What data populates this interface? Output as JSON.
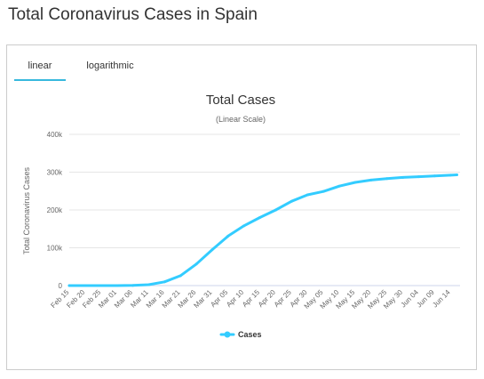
{
  "page": {
    "title": "Total Coronavirus Cases in Spain"
  },
  "tabs": [
    {
      "label": "linear",
      "active": true
    },
    {
      "label": "logarithmic",
      "active": false
    }
  ],
  "colors": {
    "series": "#33ccff",
    "tab_underline": "#37b8dd",
    "grid": "#e6e6e6"
  },
  "chart_data": {
    "type": "line",
    "title": "Total Cases",
    "subtitle": "(Linear Scale)",
    "ylabel": "Total Coronavirus Cases",
    "xlabel": "",
    "ylim": [
      0,
      400000
    ],
    "y_ticks": [
      {
        "value": 0,
        "label": "0"
      },
      {
        "value": 100000,
        "label": "100k"
      },
      {
        "value": 200000,
        "label": "200k"
      },
      {
        "value": 300000,
        "label": "300k"
      },
      {
        "value": 400000,
        "label": "400k"
      }
    ],
    "x_tick_labels": [
      "Feb 15",
      "Feb 20",
      "Feb 25",
      "Mar 01",
      "Mar 06",
      "Mar 11",
      "Mar 16",
      "Mar 21",
      "Mar 26",
      "Mar 31",
      "Apr 05",
      "Apr 10",
      "Apr 15",
      "Apr 20",
      "Apr 25",
      "Apr 30",
      "May 05",
      "May 10",
      "May 15",
      "May 20",
      "May 25",
      "May 30",
      "Jun 04",
      "Jun 09",
      "Jun 14"
    ],
    "grid": true,
    "legend": {
      "position": "bottom-center"
    },
    "series": [
      {
        "name": "Cases",
        "color": "#33ccff",
        "points": [
          [
            "Feb 15",
            2
          ],
          [
            "Feb 20",
            2
          ],
          [
            "Feb 25",
            6
          ],
          [
            "Mar 01",
            84
          ],
          [
            "Mar 06",
            400
          ],
          [
            "Mar 11",
            2300
          ],
          [
            "Mar 16",
            10000
          ],
          [
            "Mar 21",
            26000
          ],
          [
            "Mar 26",
            57000
          ],
          [
            "Mar 31",
            95000
          ],
          [
            "Apr 05",
            131000
          ],
          [
            "Apr 10",
            158000
          ],
          [
            "Apr 15",
            180000
          ],
          [
            "Apr 20",
            200000
          ],
          [
            "Apr 25",
            223000
          ],
          [
            "Apr 30",
            240000
          ],
          [
            "May 05",
            249000
          ],
          [
            "May 10",
            263000
          ],
          [
            "May 15",
            273000
          ],
          [
            "May 20",
            279000
          ],
          [
            "May 25",
            283000
          ],
          [
            "May 30",
            286000
          ],
          [
            "Jun 04",
            288000
          ],
          [
            "Jun 09",
            290000
          ],
          [
            "Jun 14",
            292000
          ],
          [
            "Jun 16",
            293000
          ]
        ]
      }
    ]
  }
}
